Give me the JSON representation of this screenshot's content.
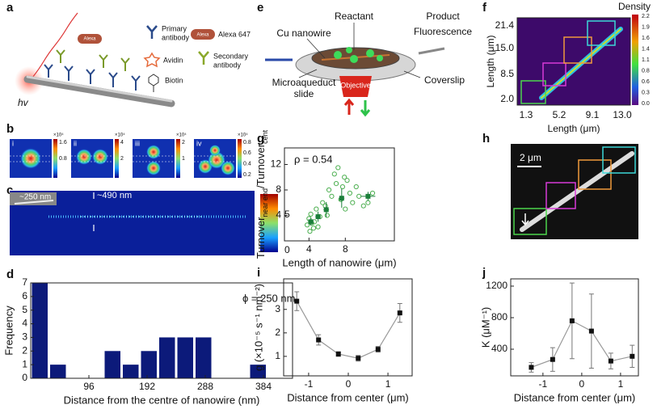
{
  "panel_labels": [
    "a",
    "b",
    "c",
    "d",
    "e",
    "f",
    "g",
    "h",
    "i",
    "j"
  ],
  "panel_a": {
    "hv": "hv",
    "molecule_label": "Alexa",
    "legend": {
      "primary": [
        "Primary",
        "antibody"
      ],
      "alexa": "Alexa 647",
      "avidin": "Avidin",
      "secondary": [
        "Secondary",
        "antibody"
      ],
      "biotin": "Biotin"
    }
  },
  "panel_b": {
    "images": [
      {
        "label": "i",
        "scale": "×10⁴",
        "ticks": [
          "1.6",
          "0.8"
        ]
      },
      {
        "label": "ii",
        "scale": "×10⁴",
        "ticks": [
          "4",
          "2"
        ]
      },
      {
        "label": "iii",
        "scale": "×10⁴",
        "ticks": [
          "2",
          "1"
        ]
      },
      {
        "label": "iv",
        "scale": "×10⁴",
        "ticks": [
          "0.8",
          "0.6",
          "0.4",
          "0.2"
        ]
      }
    ]
  },
  "panel_c": {
    "inset_label": "~250 nm",
    "width_label": "~490 nm",
    "colorbar_ticks": [
      "5",
      "0"
    ]
  },
  "panel_e": {
    "reactant": "Reactant",
    "product": "Product",
    "fluorescence": "Fluorescence",
    "nanowire": "Cu nanowire",
    "slide": [
      "Microaqueduct",
      "slide"
    ],
    "coverslip": "Coverslip",
    "objective": "Objective"
  },
  "panel_f": {
    "title": "Density",
    "xlabel": "Length (μm)",
    "ylabel": "Length (μm)",
    "xticks": [
      "1.3",
      "5.2",
      "9.1",
      "13.0"
    ],
    "yticks": [
      "21.4",
      "15.0",
      "8.5",
      "2.0"
    ],
    "colorbar_ticks": [
      "2.2",
      "1.9",
      "1.6",
      "1.4",
      "1.1",
      "0.8",
      "0.6",
      "0.3",
      "0.0"
    ]
  },
  "panel_h": {
    "scale_bar": "2 μm"
  },
  "chart_data": [
    {
      "type": "histogram",
      "xlabel": "Distance from the centre of nanowire (nm)",
      "ylabel": "Frequency",
      "annotation": "ϕ = 250 nm",
      "bins": [
        0,
        30,
        60,
        90,
        120,
        150,
        180,
        210,
        240,
        270,
        300,
        330,
        360,
        390,
        420
      ],
      "counts": [
        7,
        1,
        0,
        0,
        2,
        1,
        2,
        3,
        3,
        3,
        0,
        0,
        1,
        0
      ],
      "color": "#0c1a7a",
      "xlim": [
        0,
        432
      ],
      "ylim": [
        0,
        7
      ],
      "xticks": [
        96,
        192,
        288,
        384
      ],
      "yticks": [
        0,
        1,
        2,
        3,
        4,
        5,
        6,
        7
      ]
    },
    {
      "type": "scatter",
      "xlabel": "Length of nanowire (μm)",
      "ylabel": [
        "Turnover",
        "near end",
        "/Turnover",
        "cent"
      ],
      "annotation": "ρ = 0.54",
      "series": [
        {
          "color": "#4caf50",
          "marker": "open-circle",
          "x": [
            3.8,
            4.0,
            4.1,
            4.3,
            4.5,
            4.2,
            4.6,
            4.8,
            5.0,
            5.2,
            5.5,
            5.8,
            6.0,
            6.2,
            6.5,
            6.8,
            7.0,
            7.2,
            7.5,
            7.7,
            7.9,
            8.0,
            8.2,
            8.5,
            8.8,
            9.2,
            9.5,
            10.0,
            10.5,
            11.0
          ],
          "y": [
            2.5,
            3.5,
            1.5,
            2.8,
            2.0,
            4.2,
            3.0,
            5.0,
            2.2,
            3.8,
            6.0,
            5.5,
            4.0,
            8.0,
            7.0,
            10.5,
            9.0,
            11.5,
            6.5,
            8.5,
            10.0,
            5.0,
            9.5,
            7.5,
            6.0,
            8.5,
            7.0,
            5.5,
            6.0,
            7.5
          ]
        },
        {
          "color": "#1b7f3a",
          "marker": "square",
          "x": [
            4.2,
            5.0,
            5.9,
            7.6,
            10.5
          ],
          "y": [
            3.0,
            3.8,
            4.9,
            6.7,
            7.0
          ],
          "xerr": [
            0.3,
            0.3,
            0.3,
            0.3,
            0.8
          ],
          "yerr": [
            0.6,
            0.8,
            1.2,
            1.5,
            0.7
          ]
        }
      ],
      "xlim": [
        1.3,
        13.4
      ],
      "ylim": [
        0,
        14.6
      ],
      "xticks": [
        4,
        8
      ],
      "yticks": [
        4,
        8,
        12
      ]
    },
    {
      "type": "line",
      "xlabel": "Distance from center (μm)",
      "ylabel": "g (×10⁻⁵ s⁻¹ nm⁻²)",
      "x": [
        -1.3,
        -0.75,
        -0.25,
        0.25,
        0.75,
        1.3
      ],
      "values": [
        3.35,
        1.7,
        1.1,
        0.92,
        1.3,
        2.85
      ],
      "errors": [
        0.4,
        0.22,
        0.1,
        0.12,
        0.12,
        0.4
      ],
      "color": "#999999",
      "marker_color": "#111111",
      "xlim": [
        -1.63,
        1.61
      ],
      "ylim": [
        0.17,
        4.3
      ],
      "xticks": [
        -1,
        0,
        1
      ],
      "yticks": [
        1,
        2,
        3
      ]
    },
    {
      "type": "line",
      "xlabel": "Distance from center (μm)",
      "ylabel": "K (μM⁻¹)",
      "x": [
        -1.3,
        -0.75,
        -0.25,
        0.25,
        0.75,
        1.3
      ],
      "values": [
        170,
        270,
        760,
        630,
        250,
        310
      ],
      "errors": [
        60,
        150,
        480,
        470,
        100,
        140
      ],
      "color": "#999999",
      "marker_color": "#111111",
      "xlim": [
        -1.83,
        1.46
      ],
      "ylim": [
        62,
        1292
      ],
      "xticks": [
        -1,
        0,
        1
      ],
      "yticks": [
        400,
        800,
        1200
      ]
    }
  ]
}
